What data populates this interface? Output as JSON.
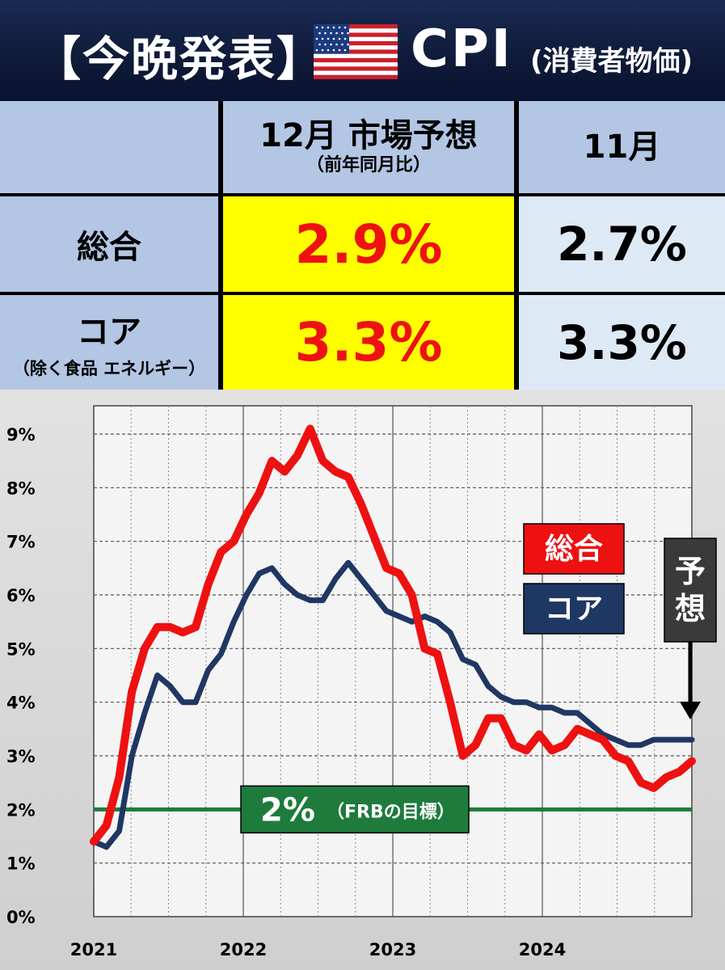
{
  "header": {
    "title": "【今晩発表】",
    "cpi": "CPI",
    "subtitle": "(消費者物価)"
  },
  "table": {
    "col_forecast_title": "12月 市場予想",
    "col_forecast_sub": "（前年同月比）",
    "col_prev_title": "11月",
    "rows": [
      {
        "label": "総合",
        "sublabel": "",
        "forecast": "2.9%",
        "prev": "2.7%"
      },
      {
        "label": "コア",
        "sublabel": "（除く食品 エネルギー）",
        "forecast": "3.3%",
        "prev": "3.3%"
      }
    ]
  },
  "colors": {
    "headline": "#ee1111",
    "core": "#1f3763",
    "target": "#1e7b3c",
    "highlight": "#ffff00",
    "header_bg": "#0e1a38"
  },
  "chart_data": {
    "type": "line",
    "x_tick_labels": [
      "2021",
      "2022",
      "2023",
      "2024"
    ],
    "y_tick_labels": [
      "0%",
      "1%",
      "2%",
      "3%",
      "4%",
      "5%",
      "6%",
      "7%",
      "8%",
      "9%"
    ],
    "ylim": [
      0,
      9
    ],
    "x": [
      "2021-01",
      "2021-02",
      "2021-03",
      "2021-04",
      "2021-05",
      "2021-06",
      "2021-07",
      "2021-08",
      "2021-09",
      "2021-10",
      "2021-11",
      "2021-12",
      "2022-01",
      "2022-02",
      "2022-03",
      "2022-04",
      "2022-05",
      "2022-06",
      "2022-07",
      "2022-08",
      "2022-09",
      "2022-10",
      "2022-11",
      "2022-12",
      "2023-01",
      "2023-02",
      "2023-03",
      "2023-04",
      "2023-05",
      "2023-06",
      "2023-07",
      "2023-08",
      "2023-09",
      "2023-10",
      "2023-11",
      "2023-12",
      "2024-01",
      "2024-02",
      "2024-03",
      "2024-04",
      "2024-05",
      "2024-06",
      "2024-07",
      "2024-08",
      "2024-09",
      "2024-10",
      "2024-11",
      "2024-12"
    ],
    "series": [
      {
        "name": "総合",
        "color": "#ee1111",
        "values": [
          1.4,
          1.7,
          2.6,
          4.2,
          5.0,
          5.4,
          5.4,
          5.3,
          5.4,
          6.2,
          6.8,
          7.0,
          7.5,
          7.9,
          8.5,
          8.3,
          8.6,
          9.1,
          8.5,
          8.3,
          8.2,
          7.7,
          7.1,
          6.5,
          6.4,
          6.0,
          5.0,
          4.9,
          4.0,
          3.0,
          3.2,
          3.7,
          3.7,
          3.2,
          3.1,
          3.4,
          3.1,
          3.2,
          3.5,
          3.4,
          3.3,
          3.0,
          2.9,
          2.5,
          2.4,
          2.6,
          2.7,
          2.9
        ]
      },
      {
        "name": "コア",
        "color": "#1f3763",
        "values": [
          1.4,
          1.3,
          1.6,
          3.0,
          3.8,
          4.5,
          4.3,
          4.0,
          4.0,
          4.6,
          4.9,
          5.5,
          6.0,
          6.4,
          6.5,
          6.2,
          6.0,
          5.9,
          5.9,
          6.3,
          6.6,
          6.3,
          6.0,
          5.7,
          5.6,
          5.5,
          5.6,
          5.5,
          5.3,
          4.8,
          4.7,
          4.3,
          4.1,
          4.0,
          4.0,
          3.9,
          3.9,
          3.8,
          3.8,
          3.6,
          3.4,
          3.3,
          3.2,
          3.2,
          3.3,
          3.3,
          3.3,
          3.3
        ]
      }
    ],
    "reference_line": {
      "value": 2.0,
      "label": "2%",
      "label_note": "（FRBの目標）"
    },
    "legend": [
      "総合",
      "コア"
    ],
    "forecast_marker_label": "予想",
    "grid": true
  }
}
